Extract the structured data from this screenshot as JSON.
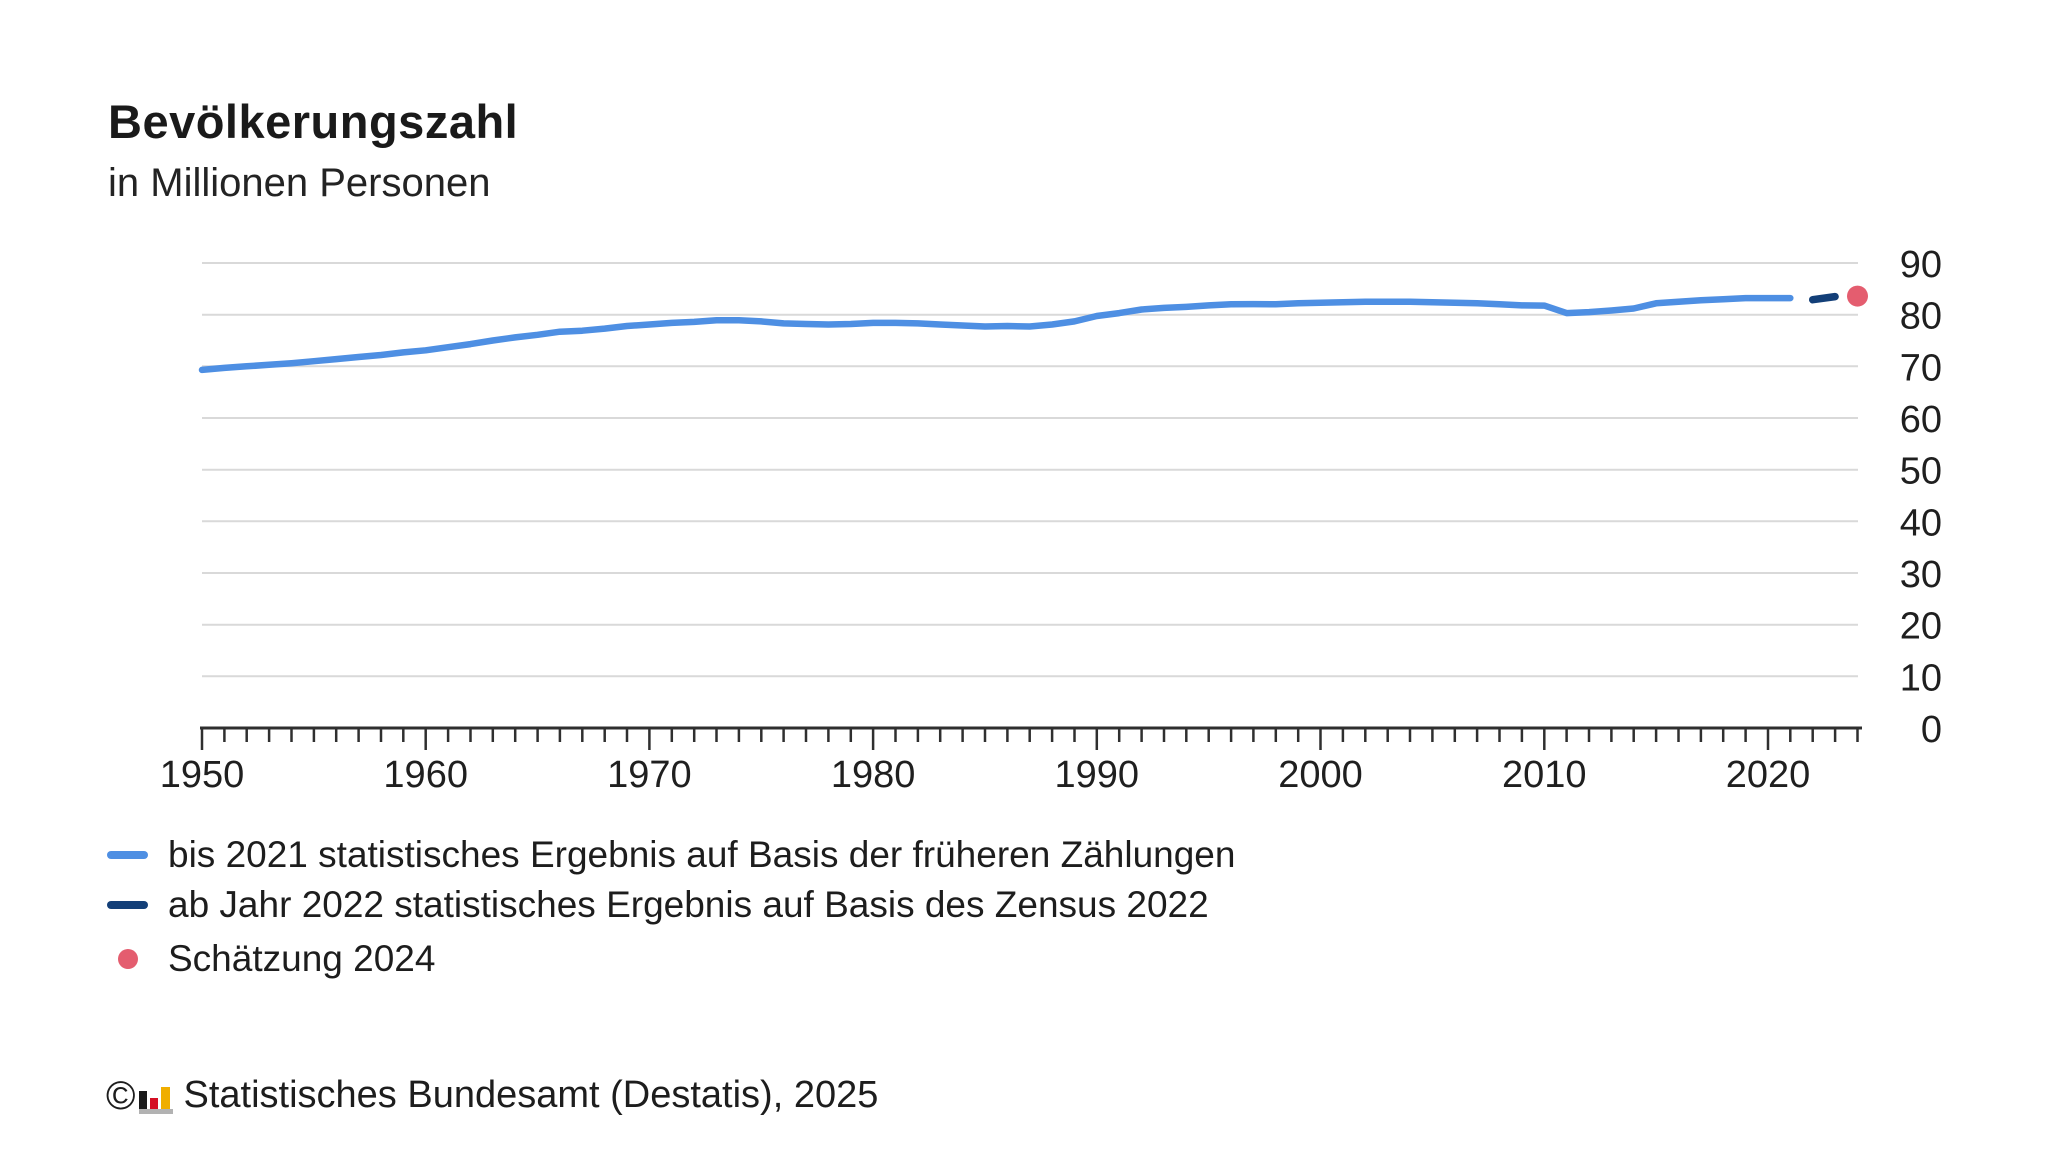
{
  "header": {
    "title": "Bevölkerungszahl",
    "subtitle": "in Millionen Personen"
  },
  "chart_data": {
    "type": "line",
    "title": "Bevölkerungszahl",
    "ylabel": "in Millionen Personen",
    "ylim": [
      0,
      90
    ],
    "y_ticks": [
      0,
      10,
      20,
      30,
      40,
      50,
      60,
      70,
      80,
      90
    ],
    "x_range": [
      1950,
      2024
    ],
    "x_labeled_ticks": [
      1950,
      1960,
      1970,
      1980,
      1990,
      2000,
      2010,
      2020
    ],
    "x_minor_tick_step_years": 1,
    "grid": "horizontal",
    "y_axis_side": "right",
    "legend_position": "bottom-left",
    "colors": {
      "grid": "#d9d9d9",
      "axis": "#2f2f2f",
      "axis_text": "#1f1f1f"
    },
    "series": [
      {
        "name": "bis 2021 statistisches Ergebnis auf Basis der früheren Zählungen",
        "style": "solid-line",
        "color": "#4e8fe3",
        "years": [
          1950,
          1951,
          1952,
          1953,
          1954,
          1955,
          1956,
          1957,
          1958,
          1959,
          1960,
          1961,
          1962,
          1963,
          1964,
          1965,
          1966,
          1967,
          1968,
          1969,
          1970,
          1971,
          1972,
          1973,
          1974,
          1975,
          1976,
          1977,
          1978,
          1979,
          1980,
          1981,
          1982,
          1983,
          1984,
          1985,
          1986,
          1987,
          1988,
          1989,
          1990,
          1991,
          1992,
          1993,
          1994,
          1995,
          1996,
          1997,
          1998,
          1999,
          2000,
          2001,
          2002,
          2003,
          2004,
          2005,
          2006,
          2007,
          2008,
          2009,
          2010,
          2011,
          2012,
          2013,
          2014,
          2015,
          2016,
          2017,
          2018,
          2019,
          2020,
          2021
        ],
        "values": [
          69.3,
          69.7,
          70.0,
          70.3,
          70.6,
          71.0,
          71.4,
          71.8,
          72.2,
          72.7,
          73.1,
          73.7,
          74.3,
          75.0,
          75.6,
          76.1,
          76.7,
          76.9,
          77.3,
          77.8,
          78.1,
          78.4,
          78.6,
          78.9,
          78.9,
          78.7,
          78.3,
          78.2,
          78.1,
          78.2,
          78.4,
          78.4,
          78.3,
          78.1,
          77.9,
          77.7,
          77.8,
          77.7,
          78.1,
          78.7,
          79.75,
          80.3,
          81.0,
          81.3,
          81.5,
          81.8,
          82.0,
          82.05,
          82.0,
          82.2,
          82.3,
          82.4,
          82.5,
          82.5,
          82.5,
          82.4,
          82.3,
          82.2,
          82.0,
          81.8,
          81.75,
          80.3,
          80.5,
          80.8,
          81.2,
          82.2,
          82.5,
          82.8,
          83.0,
          83.2,
          83.2,
          83.2
        ]
      },
      {
        "name": "ab Jahr 2022 statistisches Ergebnis auf Basis des Zensus 2022",
        "style": "dashed-line",
        "color": "#133f78",
        "years": [
          2022,
          2023
        ],
        "values": [
          82.9,
          83.5
        ]
      },
      {
        "name": "Schätzung 2024",
        "style": "point",
        "color": "#e45d6f",
        "years": [
          2024
        ],
        "values": [
          83.6
        ]
      }
    ]
  },
  "footer": {
    "copyright_symbol": "©",
    "source_text": "Statistisches Bundesamt (Destatis), 2025",
    "logo_colors": {
      "black": "#1a1a1a",
      "red": "#d40f24",
      "gold": "#f0ae00",
      "base": "#b2b2b2"
    }
  }
}
